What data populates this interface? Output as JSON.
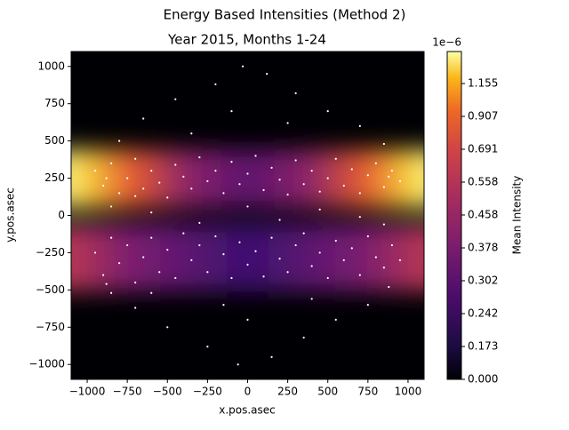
{
  "chart_data": {
    "type": "scatter",
    "suptitle": "Energy Based Intensities (Method 2)",
    "title": "Year 2015, Months 1-24",
    "x_label": "x.pos.asec",
    "y_label": "y.pos.asec",
    "xlim": [
      -1100,
      1100
    ],
    "ylim": [
      -1100,
      1100
    ],
    "xticks": [
      {
        "value": -1000,
        "label": "−1000"
      },
      {
        "value": -750,
        "label": "−750"
      },
      {
        "value": -500,
        "label": "−500"
      },
      {
        "value": -250,
        "label": "−250"
      },
      0,
      250,
      500,
      750,
      1000
    ],
    "yticks": [
      {
        "value": -1000,
        "label": "−1000"
      },
      {
        "value": -750,
        "label": "−750"
      },
      {
        "value": -500,
        "label": "−500"
      },
      {
        "value": -250,
        "label": "−250"
      },
      0,
      250,
      500,
      750,
      1000
    ],
    "colorbar": {
      "label": "Mean Intensity",
      "offset_label": "1e−6",
      "ticks": [
        {
          "value": 0,
          "label": "0.000"
        },
        0.173,
        0.242,
        0.302,
        0.378,
        0.458,
        0.558,
        0.691,
        0.907,
        1.155
      ]
    },
    "color": "#ffffff",
    "x": [
      -950,
      -900,
      -850,
      -800,
      -750,
      -700,
      -650,
      -600,
      -550,
      -500,
      -450,
      -400,
      -350,
      -300,
      -250,
      -200,
      -150,
      -100,
      -50,
      0,
      50,
      100,
      150,
      200,
      250,
      300,
      350,
      400,
      450,
      500,
      550,
      600,
      650,
      700,
      750,
      800,
      850,
      900,
      950,
      -880,
      880,
      -700,
      -600,
      -300,
      0,
      200,
      450,
      700,
      -850,
      850,
      -950,
      -900,
      -850,
      -800,
      -750,
      -700,
      -650,
      -600,
      -550,
      -500,
      -450,
      -400,
      -350,
      -300,
      -250,
      -200,
      -150,
      -100,
      -50,
      0,
      50,
      100,
      150,
      200,
      250,
      300,
      350,
      400,
      450,
      500,
      550,
      600,
      650,
      700,
      750,
      800,
      850,
      900,
      950,
      880,
      -880,
      -30,
      120,
      -200,
      300,
      -450,
      500,
      -650,
      700,
      -800,
      850,
      -100,
      250,
      -350,
      -60,
      150,
      -250,
      350,
      -500,
      550,
      -700,
      750,
      -850,
      0,
      -150,
      400,
      -600
    ],
    "y": [
      300,
      200,
      350,
      150,
      250,
      380,
      180,
      300,
      220,
      120,
      340,
      260,
      180,
      390,
      230,
      300,
      150,
      360,
      210,
      280,
      400,
      170,
      320,
      240,
      140,
      370,
      210,
      300,
      160,
      250,
      380,
      200,
      310,
      150,
      270,
      350,
      190,
      300,
      230,
      250,
      260,
      130,
      20,
      -50,
      60,
      -30,
      40,
      -10,
      60,
      -60,
      -250,
      -400,
      -150,
      -320,
      -200,
      -450,
      -280,
      -150,
      -380,
      -230,
      -420,
      -120,
      -300,
      -200,
      -380,
      -140,
      -260,
      -420,
      -180,
      -330,
      -240,
      -410,
      -150,
      -290,
      -380,
      -200,
      -120,
      -340,
      -250,
      -420,
      -170,
      -300,
      -220,
      -400,
      -140,
      -280,
      -350,
      -200,
      -300,
      -480,
      -460,
      1000,
      950,
      880,
      820,
      780,
      700,
      650,
      600,
      500,
      480,
      700,
      620,
      550,
      -1000,
      -950,
      -880,
      -820,
      -750,
      -700,
      -620,
      -600,
      -520,
      -700,
      -600,
      -560,
      -520
    ]
  }
}
